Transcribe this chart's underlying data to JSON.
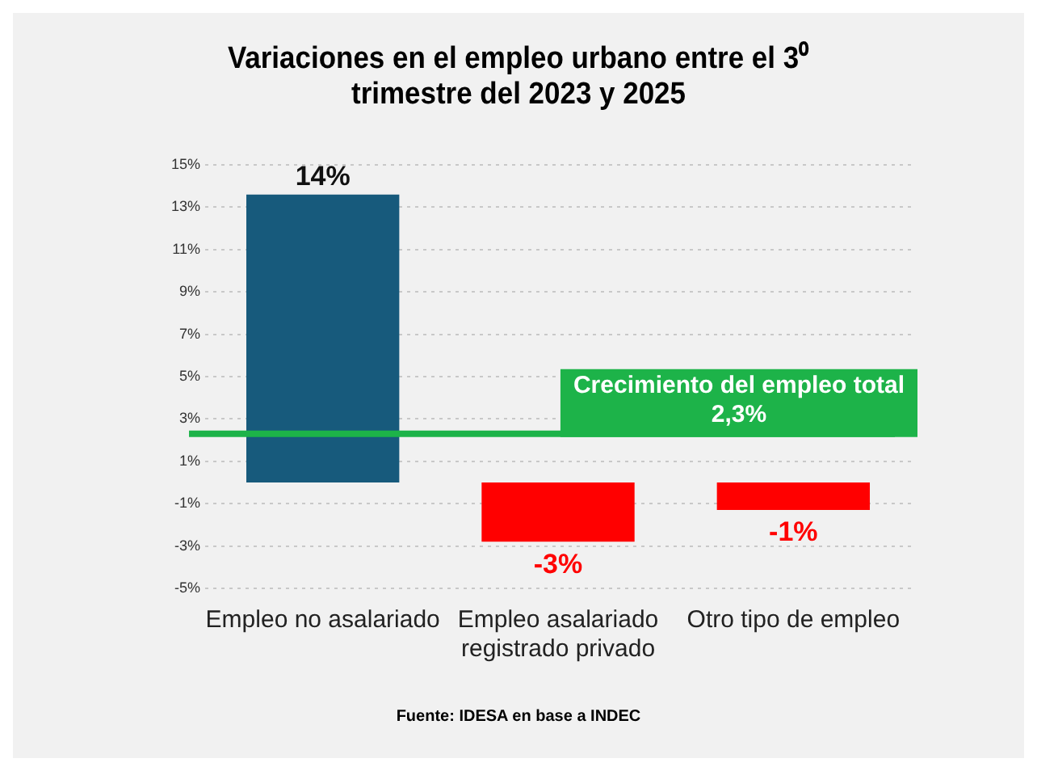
{
  "chart_data": {
    "type": "bar",
    "title": "Variaciones en el empleo urbano entre el 3⁰ trimestre del 2023 y 2025",
    "categories": [
      "Empleo no asalariado",
      "Empleo asalariado registrado privado",
      "Otro tipo de empleo"
    ],
    "values": [
      13.6,
      -2.8,
      -1.3
    ],
    "colors": [
      "#175a7c",
      "#ff0000",
      "#ff0000"
    ],
    "value_labels": [
      "14%",
      "-3%",
      "-1%"
    ],
    "ylim": [
      -5,
      15
    ],
    "yticks": [
      {
        "value": 15,
        "label": "15%"
      },
      {
        "value": 13,
        "label": "13%"
      },
      {
        "value": 11,
        "label": "11%"
      },
      {
        "value": 9,
        "label": "9%"
      },
      {
        "value": 7,
        "label": "7%"
      },
      {
        "value": 5,
        "label": "5%"
      },
      {
        "value": 3,
        "label": "3%"
      },
      {
        "value": 1,
        "label": "1%"
      },
      {
        "value": -1,
        "label": "-1%"
      },
      {
        "value": -3,
        "label": "-3%"
      },
      {
        "value": -5,
        "label": "-5%"
      }
    ],
    "grid": "y",
    "legend": false,
    "ref_lines": [
      {
        "axis": "y",
        "value": 2.3,
        "label": "Crecimiento del empleo total 2,3%",
        "color": "#1db349"
      }
    ],
    "annotations": [
      "Fuente: IDESA en base a INDEC"
    ]
  }
}
